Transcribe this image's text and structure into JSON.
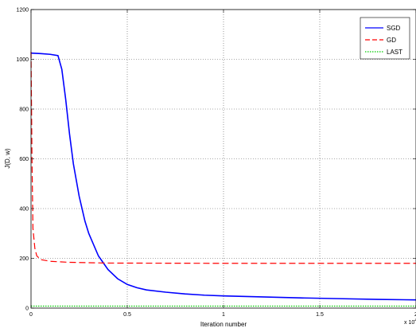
{
  "chart_data": {
    "type": "line",
    "xlabel": "Iteration number",
    "ylabel": "J(D, w)",
    "xlim": [
      0,
      2
    ],
    "ylim": [
      0,
      1200
    ],
    "x_ticks": [
      "0",
      "0.5",
      "1",
      "1.5",
      "2"
    ],
    "x_tick_values": [
      0,
      0.5,
      1,
      1.5,
      2
    ],
    "y_ticks": [
      "0",
      "200",
      "400",
      "600",
      "800",
      "1000",
      "1200"
    ],
    "y_tick_values": [
      0,
      200,
      400,
      600,
      800,
      1000,
      1200
    ],
    "x_multiplier": "x 10",
    "x_multiplier_exp": "4",
    "grid": true,
    "legend_position": "top-right",
    "series": [
      {
        "name": "SGD",
        "color": "#0000ff",
        "dash": "solid",
        "points": [
          [
            0,
            1025
          ],
          [
            0.05,
            1023
          ],
          [
            0.1,
            1020
          ],
          [
            0.14,
            1015
          ],
          [
            0.16,
            960
          ],
          [
            0.18,
            840
          ],
          [
            0.2,
            700
          ],
          [
            0.22,
            580
          ],
          [
            0.25,
            450
          ],
          [
            0.28,
            350
          ],
          [
            0.3,
            300
          ],
          [
            0.35,
            210
          ],
          [
            0.4,
            155
          ],
          [
            0.45,
            118
          ],
          [
            0.5,
            95
          ],
          [
            0.55,
            82
          ],
          [
            0.6,
            73
          ],
          [
            0.7,
            64
          ],
          [
            0.8,
            57
          ],
          [
            0.9,
            52
          ],
          [
            1.0,
            49
          ],
          [
            1.2,
            45
          ],
          [
            1.4,
            41
          ],
          [
            1.6,
            38
          ],
          [
            1.8,
            35
          ],
          [
            2.0,
            33
          ]
        ]
      },
      {
        "name": "GD",
        "color": "#ff0000",
        "dash": "dashed",
        "points": [
          [
            0,
            1030
          ],
          [
            0.005,
            600
          ],
          [
            0.01,
            320
          ],
          [
            0.02,
            240
          ],
          [
            0.03,
            210
          ],
          [
            0.05,
            195
          ],
          [
            0.1,
            188
          ],
          [
            0.2,
            184
          ],
          [
            0.4,
            181
          ],
          [
            1.0,
            180
          ],
          [
            2.0,
            180
          ]
        ]
      },
      {
        "name": "LAST",
        "color": "#00cc00",
        "dash": "dotted",
        "points": [
          [
            0,
            8
          ],
          [
            2.0,
            8
          ]
        ]
      }
    ]
  }
}
